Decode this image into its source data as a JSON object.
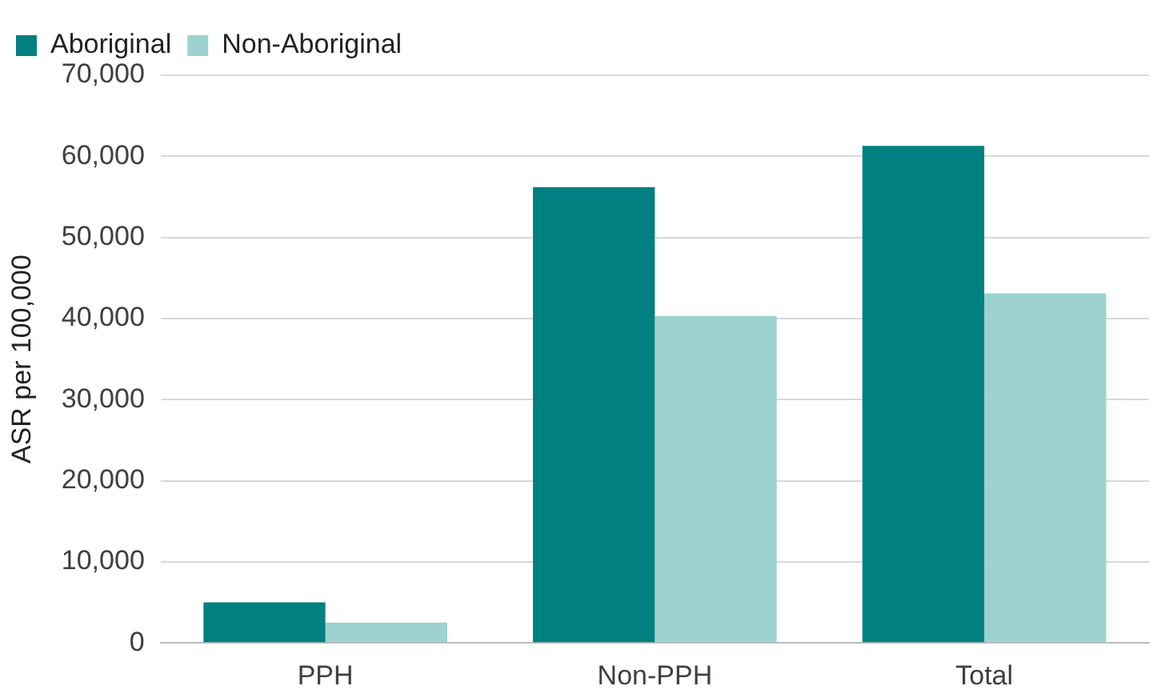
{
  "chart_data": {
    "type": "bar",
    "ylabel": "ASR per 100,000",
    "categories": [
      "PPH",
      "Non-PPH",
      "Total"
    ],
    "series": [
      {
        "name": "Aboriginal",
        "color": "#008080",
        "values": [
          5000,
          56200,
          61300
        ]
      },
      {
        "name": "Non-Aboriginal",
        "color": "#9dd2d0",
        "values": [
          2500,
          40300,
          43100
        ]
      }
    ],
    "ylim": [
      0,
      70000
    ],
    "yticks": [
      {
        "value": 0,
        "label": "0"
      },
      {
        "value": 10000,
        "label": "10,000"
      },
      {
        "value": 20000,
        "label": "20,000"
      },
      {
        "value": 30000,
        "label": "30,000"
      },
      {
        "value": 40000,
        "label": "40,000"
      },
      {
        "value": 50000,
        "label": "50,000"
      },
      {
        "value": 60000,
        "label": "60,000"
      },
      {
        "value": 70000,
        "label": "70,000"
      }
    ],
    "grid": "y",
    "legend": "top left"
  }
}
